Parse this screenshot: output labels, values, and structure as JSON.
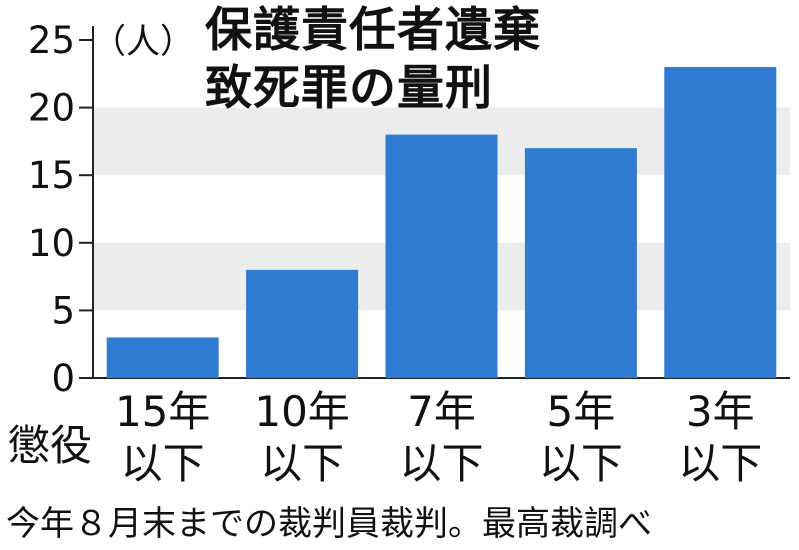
{
  "title_line1": "保護責任者遺棄",
  "title_line2": "致死罪の量刑",
  "unit": "（人）",
  "category_prefix": "懲役",
  "source": "今年８月末までの裁判員裁判。最高裁調べ",
  "colors": {
    "bar": "#2f7bd1",
    "band": "#ececec",
    "axis": "#222222"
  },
  "chart_data": {
    "type": "bar",
    "categories": [
      {
        "line1": "15年",
        "line2": "以下"
      },
      {
        "line1": "10年",
        "line2": "以下"
      },
      {
        "line1": "7年",
        "line2": "以下"
      },
      {
        "line1": "5年",
        "line2": "以下"
      },
      {
        "line1": "3年",
        "line2": "以下"
      }
    ],
    "values": [
      3,
      8,
      18,
      17,
      23
    ],
    "yticks": [
      0,
      5,
      10,
      15,
      20,
      25
    ],
    "ylim": [
      0,
      25
    ],
    "ylabel": "（人）",
    "grid": "alternating bands"
  }
}
